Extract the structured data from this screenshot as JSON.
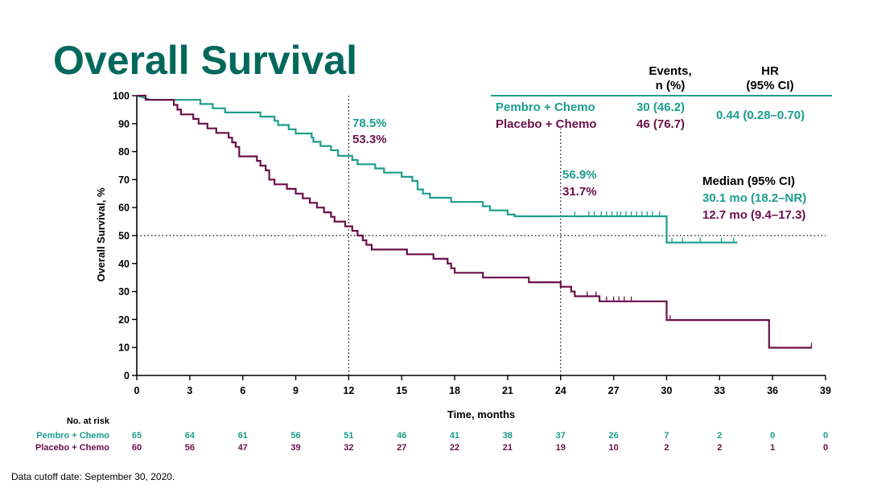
{
  "slide_title": "Overall Survival",
  "footnote": "Data cutoff date: September 30, 2020.",
  "colors": {
    "pembro": "#1a9e8c",
    "placebo": "#6b0f4a",
    "title": "#00695c",
    "axis": "#000000"
  },
  "chart_data": {
    "type": "line",
    "subtype": "kaplan-meier",
    "xlabel": "Time, months",
    "ylabel": "Overall Survival, %",
    "xlim": [
      0,
      39
    ],
    "ylim": [
      0,
      100
    ],
    "xticks": [
      0,
      3,
      6,
      9,
      12,
      15,
      18,
      21,
      24,
      27,
      30,
      33,
      36,
      39
    ],
    "yticks": [
      0,
      10,
      20,
      30,
      40,
      50,
      60,
      70,
      80,
      90,
      100
    ],
    "reference_lines": {
      "y": 50,
      "x": [
        12,
        24
      ]
    },
    "series": [
      {
        "name": "Pembro + Chemo",
        "color": "#1a9e8c",
        "steps": [
          [
            0,
            100
          ],
          [
            0.8,
            98.5
          ],
          [
            3.6,
            98.5
          ],
          [
            3.6,
            97
          ],
          [
            4.3,
            97
          ],
          [
            4.3,
            95.5
          ],
          [
            5.0,
            95.5
          ],
          [
            5.0,
            94
          ],
          [
            7.0,
            94
          ],
          [
            7.0,
            92.5
          ],
          [
            7.8,
            92.5
          ],
          [
            7.8,
            91
          ],
          [
            8.0,
            91
          ],
          [
            8.0,
            89.5
          ],
          [
            8.6,
            89.5
          ],
          [
            8.6,
            88
          ],
          [
            9.0,
            88
          ],
          [
            9.0,
            86.5
          ],
          [
            9.9,
            86.5
          ],
          [
            9.9,
            85
          ],
          [
            10.0,
            85
          ],
          [
            10.0,
            83.5
          ],
          [
            10.4,
            83.5
          ],
          [
            10.4,
            82
          ],
          [
            11.0,
            82
          ],
          [
            11.0,
            80.5
          ],
          [
            11.4,
            80.5
          ],
          [
            11.4,
            78.5
          ],
          [
            12.2,
            78.5
          ],
          [
            12.2,
            77
          ],
          [
            12.5,
            77
          ],
          [
            12.5,
            75.5
          ],
          [
            13.5,
            75.5
          ],
          [
            13.5,
            74
          ],
          [
            14.0,
            74
          ],
          [
            14.0,
            72.5
          ],
          [
            15.0,
            72.5
          ],
          [
            15.0,
            71
          ],
          [
            15.6,
            71
          ],
          [
            15.6,
            69.5
          ],
          [
            15.9,
            69.5
          ],
          [
            15.9,
            66.5
          ],
          [
            16.2,
            66.5
          ],
          [
            16.2,
            65
          ],
          [
            16.6,
            65
          ],
          [
            16.6,
            63.5
          ],
          [
            17.8,
            63.5
          ],
          [
            17.8,
            62
          ],
          [
            19.6,
            62
          ],
          [
            19.6,
            60.5
          ],
          [
            20.0,
            60.5
          ],
          [
            20.0,
            59
          ],
          [
            21.0,
            59
          ],
          [
            21.0,
            57.5
          ],
          [
            21.4,
            57.5
          ],
          [
            21.4,
            56.9
          ],
          [
            30.0,
            56.9
          ],
          [
            30.0,
            47.5
          ],
          [
            34.0,
            47.5
          ]
        ],
        "censor_times": [
          24.8,
          25.6,
          25.9,
          26.3,
          26.6,
          26.9,
          27.2,
          27.4,
          27.7,
          28.0,
          28.3,
          28.6,
          28.9,
          29.2,
          29.6,
          30.3,
          30.9,
          31.9,
          33.1,
          33.8
        ],
        "landmarks": [
          {
            "t": 12,
            "value": "78.5%"
          },
          {
            "t": 24,
            "value": "56.9%"
          }
        ],
        "events": "30 (46.2)",
        "median": "30.1 mo (18.2–NR)",
        "at_risk": [
          "65",
          "64",
          "61",
          "56",
          "51",
          "46",
          "41",
          "38",
          "37",
          "26",
          "7",
          "2",
          "0",
          "0"
        ]
      },
      {
        "name": "Placebo + Chemo",
        "color": "#6b0f4a",
        "steps": [
          [
            0,
            100
          ],
          [
            0.5,
            100
          ],
          [
            0.5,
            98.5
          ],
          [
            2.1,
            98.5
          ],
          [
            2.1,
            96.7
          ],
          [
            2.3,
            96.7
          ],
          [
            2.3,
            95
          ],
          [
            2.5,
            95
          ],
          [
            2.5,
            93.3
          ],
          [
            3.2,
            93.3
          ],
          [
            3.2,
            91.7
          ],
          [
            3.5,
            91.7
          ],
          [
            3.5,
            90
          ],
          [
            4.0,
            90
          ],
          [
            4.0,
            88.3
          ],
          [
            4.5,
            88.3
          ],
          [
            4.5,
            86.7
          ],
          [
            5.2,
            86.7
          ],
          [
            5.2,
            85
          ],
          [
            5.4,
            85
          ],
          [
            5.4,
            83.3
          ],
          [
            5.6,
            83.3
          ],
          [
            5.6,
            81.7
          ],
          [
            5.8,
            81.7
          ],
          [
            5.8,
            78.3
          ],
          [
            6.8,
            78.3
          ],
          [
            6.8,
            76.7
          ],
          [
            7.0,
            76.7
          ],
          [
            7.0,
            75
          ],
          [
            7.3,
            75
          ],
          [
            7.3,
            73.3
          ],
          [
            7.5,
            73.3
          ],
          [
            7.5,
            70
          ],
          [
            7.8,
            70
          ],
          [
            7.8,
            68.3
          ],
          [
            8.5,
            68.3
          ],
          [
            8.5,
            66.7
          ],
          [
            9.0,
            66.7
          ],
          [
            9.0,
            65
          ],
          [
            9.4,
            65
          ],
          [
            9.4,
            63.3
          ],
          [
            9.8,
            63.3
          ],
          [
            9.8,
            61.7
          ],
          [
            10.2,
            61.7
          ],
          [
            10.2,
            60
          ],
          [
            10.6,
            60
          ],
          [
            10.6,
            58.3
          ],
          [
            11.0,
            58.3
          ],
          [
            11.0,
            56.7
          ],
          [
            11.2,
            56.7
          ],
          [
            11.2,
            55
          ],
          [
            11.8,
            55
          ],
          [
            11.8,
            53.3
          ],
          [
            12.2,
            53.3
          ],
          [
            12.2,
            51.7
          ],
          [
            12.5,
            51.7
          ],
          [
            12.5,
            50
          ],
          [
            12.8,
            50
          ],
          [
            12.8,
            48.3
          ],
          [
            13.0,
            48.3
          ],
          [
            13.0,
            46.7
          ],
          [
            13.3,
            46.7
          ],
          [
            13.3,
            45
          ],
          [
            15.3,
            45
          ],
          [
            15.3,
            43.3
          ],
          [
            16.8,
            43.3
          ],
          [
            16.8,
            41.7
          ],
          [
            17.6,
            41.7
          ],
          [
            17.6,
            40
          ],
          [
            17.8,
            40
          ],
          [
            17.8,
            38.3
          ],
          [
            18.0,
            38.3
          ],
          [
            18.0,
            36.7
          ],
          [
            19.6,
            36.7
          ],
          [
            19.6,
            35
          ],
          [
            22.2,
            35
          ],
          [
            22.2,
            33.3
          ],
          [
            24.0,
            33.3
          ],
          [
            24.0,
            31.7
          ],
          [
            24.6,
            31.7
          ],
          [
            24.6,
            30
          ],
          [
            24.8,
            30
          ],
          [
            24.8,
            28.3
          ],
          [
            26.2,
            28.3
          ],
          [
            26.2,
            26.5
          ],
          [
            30.0,
            26.5
          ],
          [
            30.0,
            19.8
          ],
          [
            35.8,
            19.8
          ],
          [
            35.8,
            9.9
          ],
          [
            38.2,
            9.9
          ]
        ],
        "censor_times": [
          25.5,
          26.0,
          26.6,
          27.0,
          27.3,
          27.6,
          28.0,
          30.2,
          38.2
        ],
        "landmarks": [
          {
            "t": 12,
            "value": "53.3%"
          },
          {
            "t": 24,
            "value": "31.7%"
          }
        ],
        "events": "46 (76.7)",
        "median": "12.7 mo (9.4–17.3)",
        "at_risk": [
          "60",
          "56",
          "47",
          "39",
          "32",
          "27",
          "22",
          "21",
          "19",
          "10",
          "2",
          "2",
          "1",
          "0"
        ]
      }
    ],
    "table": {
      "events_header": [
        "Events,",
        "n (%)"
      ],
      "hr_header": [
        "HR",
        "(95% CI)"
      ],
      "hr_value": "0.44 (0.28–0.70)"
    },
    "median_title": "Median (95% CI)",
    "at_risk_label": "No. at risk"
  }
}
